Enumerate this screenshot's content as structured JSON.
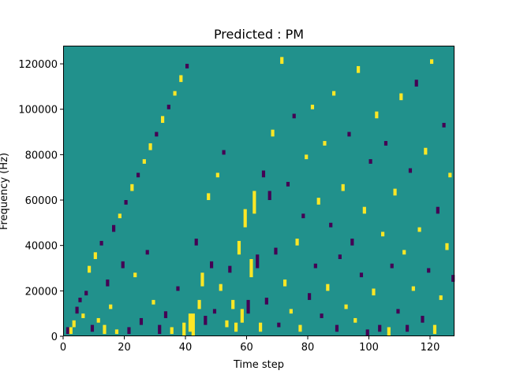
{
  "chart_data": {
    "type": "heatmap",
    "title": "Predicted : PM",
    "xlabel": "Time step",
    "ylabel": "Frequency (Hz)",
    "xlim": [
      0,
      128
    ],
    "ylim": [
      0,
      128000
    ],
    "xticks": [
      0,
      20,
      40,
      60,
      80,
      100,
      120
    ],
    "yticks": [
      0,
      20000,
      40000,
      60000,
      80000,
      100000,
      120000
    ],
    "n_time_steps": 128,
    "n_frequency_bins": 128,
    "bin_hz": 1000,
    "colormap": "viridis",
    "levels": {
      "low": "#440154",
      "mid": "#21918c",
      "high": "#fde725"
    },
    "background_level": "mid",
    "grid": false,
    "legend": "none",
    "cells": [
      {
        "t": 1,
        "f": 1,
        "level": "low",
        "len": 3
      },
      {
        "t": 2,
        "f": 1,
        "level": "high",
        "len": 3
      },
      {
        "t": 3,
        "f": 4,
        "level": "high",
        "len": 3
      },
      {
        "t": 4,
        "f": 10,
        "level": "low",
        "len": 3
      },
      {
        "t": 5,
        "f": 15,
        "level": "low",
        "len": 2
      },
      {
        "t": 6,
        "f": 8,
        "level": "high",
        "len": 2
      },
      {
        "t": 7,
        "f": 18,
        "level": "low",
        "len": 2
      },
      {
        "t": 8,
        "f": 28,
        "level": "high",
        "len": 3
      },
      {
        "t": 9,
        "f": 2,
        "level": "low",
        "len": 3
      },
      {
        "t": 10,
        "f": 34,
        "level": "high",
        "len": 3
      },
      {
        "t": 11,
        "f": 6,
        "level": "high",
        "len": 2
      },
      {
        "t": 12,
        "f": 40,
        "level": "low",
        "len": 2
      },
      {
        "t": 13,
        "f": 1,
        "level": "high",
        "len": 4
      },
      {
        "t": 14,
        "f": 22,
        "level": "low",
        "len": 3
      },
      {
        "t": 15,
        "f": 12,
        "level": "high",
        "len": 2
      },
      {
        "t": 16,
        "f": 46,
        "level": "low",
        "len": 3
      },
      {
        "t": 17,
        "f": 1,
        "level": "high",
        "len": 2
      },
      {
        "t": 18,
        "f": 52,
        "level": "high",
        "len": 2
      },
      {
        "t": 19,
        "f": 30,
        "level": "low",
        "len": 3
      },
      {
        "t": 20,
        "f": 58,
        "level": "low",
        "len": 2
      },
      {
        "t": 21,
        "f": 1,
        "level": "low",
        "len": 3
      },
      {
        "t": 22,
        "f": 64,
        "level": "high",
        "len": 3
      },
      {
        "t": 23,
        "f": 26,
        "level": "high",
        "len": 2
      },
      {
        "t": 24,
        "f": 70,
        "level": "low",
        "len": 2
      },
      {
        "t": 25,
        "f": 5,
        "level": "low",
        "len": 3
      },
      {
        "t": 26,
        "f": 76,
        "level": "high",
        "len": 2
      },
      {
        "t": 27,
        "f": 36,
        "level": "low",
        "len": 2
      },
      {
        "t": 28,
        "f": 82,
        "level": "high",
        "len": 3
      },
      {
        "t": 29,
        "f": 14,
        "level": "high",
        "len": 2
      },
      {
        "t": 30,
        "f": 88,
        "level": "low",
        "len": 2
      },
      {
        "t": 31,
        "f": 1,
        "level": "low",
        "len": 4
      },
      {
        "t": 32,
        "f": 94,
        "level": "high",
        "len": 3
      },
      {
        "t": 33,
        "f": 8,
        "level": "low",
        "len": 3
      },
      {
        "t": 34,
        "f": 100,
        "level": "low",
        "len": 2
      },
      {
        "t": 35,
        "f": 1,
        "level": "high",
        "len": 3
      },
      {
        "t": 36,
        "f": 106,
        "level": "high",
        "len": 2
      },
      {
        "t": 37,
        "f": 20,
        "level": "low",
        "len": 2
      },
      {
        "t": 38,
        "f": 112,
        "level": "high",
        "len": 3
      },
      {
        "t": 39,
        "f": 0,
        "level": "high",
        "len": 6
      },
      {
        "t": 40,
        "f": 118,
        "level": "low",
        "len": 2
      },
      {
        "t": 41,
        "f": 2,
        "level": "high",
        "len": 8
      },
      {
        "t": 42,
        "f": 0,
        "level": "high",
        "len": 10
      },
      {
        "t": 43,
        "f": 40,
        "level": "low",
        "len": 3
      },
      {
        "t": 44,
        "f": 12,
        "level": "high",
        "len": 4
      },
      {
        "t": 45,
        "f": 22,
        "level": "high",
        "len": 6
      },
      {
        "t": 46,
        "f": 5,
        "level": "low",
        "len": 4
      },
      {
        "t": 47,
        "f": 60,
        "level": "high",
        "len": 3
      },
      {
        "t": 48,
        "f": 30,
        "level": "low",
        "len": 3
      },
      {
        "t": 49,
        "f": 10,
        "level": "low",
        "len": 2
      },
      {
        "t": 50,
        "f": 70,
        "level": "high",
        "len": 2
      },
      {
        "t": 51,
        "f": 20,
        "level": "high",
        "len": 3
      },
      {
        "t": 52,
        "f": 80,
        "level": "low",
        "len": 2
      },
      {
        "t": 53,
        "f": 4,
        "level": "high",
        "len": 3
      },
      {
        "t": 54,
        "f": 28,
        "level": "low",
        "len": 3
      },
      {
        "t": 55,
        "f": 12,
        "level": "high",
        "len": 4
      },
      {
        "t": 56,
        "f": 2,
        "level": "high",
        "len": 4
      },
      {
        "t": 57,
        "f": 36,
        "level": "high",
        "len": 6
      },
      {
        "t": 58,
        "f": 6,
        "level": "high",
        "len": 6
      },
      {
        "t": 59,
        "f": 48,
        "level": "high",
        "len": 8
      },
      {
        "t": 60,
        "f": 10,
        "level": "low",
        "len": 6
      },
      {
        "t": 61,
        "f": 26,
        "level": "high",
        "len": 8
      },
      {
        "t": 62,
        "f": 54,
        "level": "high",
        "len": 10
      },
      {
        "t": 63,
        "f": 30,
        "level": "low",
        "len": 6
      },
      {
        "t": 64,
        "f": 2,
        "level": "high",
        "len": 4
      },
      {
        "t": 65,
        "f": 70,
        "level": "low",
        "len": 3
      },
      {
        "t": 66,
        "f": 14,
        "level": "low",
        "len": 3
      },
      {
        "t": 67,
        "f": 60,
        "level": "low",
        "len": 4
      },
      {
        "t": 68,
        "f": 88,
        "level": "high",
        "len": 3
      },
      {
        "t": 69,
        "f": 36,
        "level": "low",
        "len": 3
      },
      {
        "t": 70,
        "f": 4,
        "level": "low",
        "len": 2
      },
      {
        "t": 71,
        "f": 120,
        "level": "high",
        "len": 3
      },
      {
        "t": 72,
        "f": 22,
        "level": "high",
        "len": 3
      },
      {
        "t": 73,
        "f": 66,
        "level": "low",
        "len": 2
      },
      {
        "t": 74,
        "f": 10,
        "level": "high",
        "len": 2
      },
      {
        "t": 75,
        "f": 96,
        "level": "low",
        "len": 2
      },
      {
        "t": 76,
        "f": 40,
        "level": "high",
        "len": 3
      },
      {
        "t": 77,
        "f": 2,
        "level": "high",
        "len": 3
      },
      {
        "t": 78,
        "f": 52,
        "level": "low",
        "len": 2
      },
      {
        "t": 79,
        "f": 78,
        "level": "high",
        "len": 2
      },
      {
        "t": 80,
        "f": 16,
        "level": "low",
        "len": 3
      },
      {
        "t": 81,
        "f": 100,
        "level": "high",
        "len": 2
      },
      {
        "t": 82,
        "f": 30,
        "level": "low",
        "len": 2
      },
      {
        "t": 83,
        "f": 58,
        "level": "high",
        "len": 3
      },
      {
        "t": 84,
        "f": 8,
        "level": "low",
        "len": 2
      },
      {
        "t": 85,
        "f": 84,
        "level": "high",
        "len": 2
      },
      {
        "t": 86,
        "f": 20,
        "level": "high",
        "len": 3
      },
      {
        "t": 87,
        "f": 48,
        "level": "low",
        "len": 2
      },
      {
        "t": 88,
        "f": 106,
        "level": "high",
        "len": 2
      },
      {
        "t": 89,
        "f": 2,
        "level": "low",
        "len": 3
      },
      {
        "t": 90,
        "f": 34,
        "level": "low",
        "len": 2
      },
      {
        "t": 91,
        "f": 64,
        "level": "high",
        "len": 3
      },
      {
        "t": 92,
        "f": 12,
        "level": "high",
        "len": 2
      },
      {
        "t": 93,
        "f": 88,
        "level": "low",
        "len": 2
      },
      {
        "t": 94,
        "f": 40,
        "level": "low",
        "len": 3
      },
      {
        "t": 95,
        "f": 6,
        "level": "high",
        "len": 2
      },
      {
        "t": 96,
        "f": 116,
        "level": "high",
        "len": 3
      },
      {
        "t": 97,
        "f": 26,
        "level": "low",
        "len": 2
      },
      {
        "t": 98,
        "f": 54,
        "level": "high",
        "len": 3
      },
      {
        "t": 99,
        "f": 0,
        "level": "low",
        "len": 3
      },
      {
        "t": 100,
        "f": 76,
        "level": "low",
        "len": 2
      },
      {
        "t": 101,
        "f": 18,
        "level": "high",
        "len": 3
      },
      {
        "t": 102,
        "f": 96,
        "level": "high",
        "len": 3
      },
      {
        "t": 103,
        "f": 2,
        "level": "low",
        "len": 3
      },
      {
        "t": 104,
        "f": 44,
        "level": "high",
        "len": 2
      },
      {
        "t": 105,
        "f": 84,
        "level": "low",
        "len": 2
      },
      {
        "t": 106,
        "f": 0,
        "level": "high",
        "len": 4
      },
      {
        "t": 107,
        "f": 30,
        "level": "low",
        "len": 2
      },
      {
        "t": 108,
        "f": 62,
        "level": "high",
        "len": 3
      },
      {
        "t": 109,
        "f": 10,
        "level": "low",
        "len": 2
      },
      {
        "t": 110,
        "f": 104,
        "level": "high",
        "len": 3
      },
      {
        "t": 111,
        "f": 36,
        "level": "high",
        "len": 2
      },
      {
        "t": 112,
        "f": 2,
        "level": "low",
        "len": 3
      },
      {
        "t": 113,
        "f": 72,
        "level": "low",
        "len": 2
      },
      {
        "t": 114,
        "f": 20,
        "level": "high",
        "len": 2
      },
      {
        "t": 115,
        "f": 110,
        "level": "low",
        "len": 3
      },
      {
        "t": 116,
        "f": 46,
        "level": "high",
        "len": 2
      },
      {
        "t": 117,
        "f": 6,
        "level": "low",
        "len": 3
      },
      {
        "t": 118,
        "f": 80,
        "level": "high",
        "len": 3
      },
      {
        "t": 119,
        "f": 28,
        "level": "low",
        "len": 2
      },
      {
        "t": 120,
        "f": 120,
        "level": "high",
        "len": 2
      },
      {
        "t": 121,
        "f": 1,
        "level": "high",
        "len": 4
      },
      {
        "t": 122,
        "f": 54,
        "level": "low",
        "len": 3
      },
      {
        "t": 123,
        "f": 16,
        "level": "high",
        "len": 2
      },
      {
        "t": 124,
        "f": 92,
        "level": "low",
        "len": 2
      },
      {
        "t": 125,
        "f": 38,
        "level": "high",
        "len": 3
      },
      {
        "t": 126,
        "f": 70,
        "level": "high",
        "len": 2
      },
      {
        "t": 127,
        "f": 24,
        "level": "low",
        "len": 3
      }
    ]
  }
}
